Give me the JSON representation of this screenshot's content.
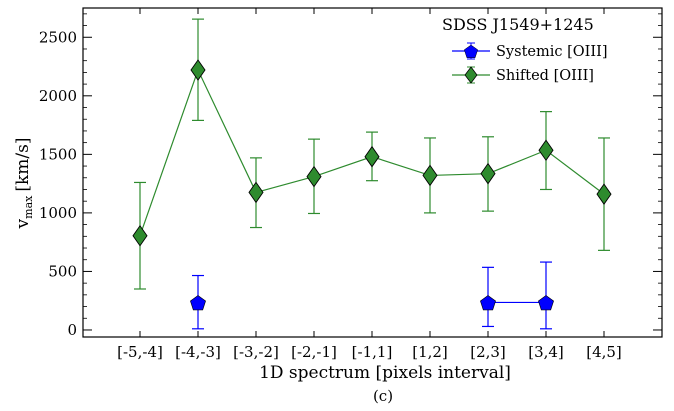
{
  "chart_data": {
    "type": "scatter",
    "title": "SDSS J1549+1245",
    "xlabel": "1D spectrum [pixels interval]",
    "ylabel_main": "v",
    "ylabel_sub": "max",
    "ylabel_unit": "[km/s]",
    "caption": "(c)",
    "categories": [
      "[-5,-4]",
      "[-4,-3]",
      "[-3,-2]",
      "[-2,-1]",
      "[-1,1]",
      "[1,2]",
      "[2,3]",
      "[3,4]",
      "[4,5]"
    ],
    "ylim": [
      -60,
      2750
    ],
    "yticks": [
      0,
      500,
      1000,
      1500,
      2000,
      2500
    ],
    "legend_position": "top-right",
    "series": [
      {
        "name": "Systemic [OIII]",
        "color": "#0000ff",
        "marker": "pentagon",
        "points": [
          {
            "category": "[-4,-3]",
            "y": 235,
            "err_low": 225,
            "err_high": 230
          },
          {
            "category": "[2,3]",
            "y": 235,
            "err_low": 205,
            "err_high": 300
          },
          {
            "category": "[3,4]",
            "y": 235,
            "err_low": 225,
            "err_high": 345
          }
        ],
        "line_segments": [
          [
            "[2,3]",
            "[3,4]"
          ]
        ]
      },
      {
        "name": "Shifted [OIII]",
        "color": "#2e8b2e",
        "marker": "diamond",
        "points": [
          {
            "category": "[-5,-4]",
            "y": 805,
            "err_low": 455,
            "err_high": 455
          },
          {
            "category": "[-4,-3]",
            "y": 2220,
            "err_low": 430,
            "err_high": 435
          },
          {
            "category": "[-3,-2]",
            "y": 1175,
            "err_low": 300,
            "err_high": 295
          },
          {
            "category": "[-2,-1]",
            "y": 1310,
            "err_low": 315,
            "err_high": 320
          },
          {
            "category": "[-1,1]",
            "y": 1480,
            "err_low": 205,
            "err_high": 210
          },
          {
            "category": "[1,2]",
            "y": 1320,
            "err_low": 320,
            "err_high": 320
          },
          {
            "category": "[2,3]",
            "y": 1335,
            "err_low": 320,
            "err_high": 315
          },
          {
            "category": "[3,4]",
            "y": 1535,
            "err_low": 335,
            "err_high": 330
          },
          {
            "category": "[4,5]",
            "y": 1160,
            "err_low": 480,
            "err_high": 480
          }
        ]
      }
    ]
  }
}
